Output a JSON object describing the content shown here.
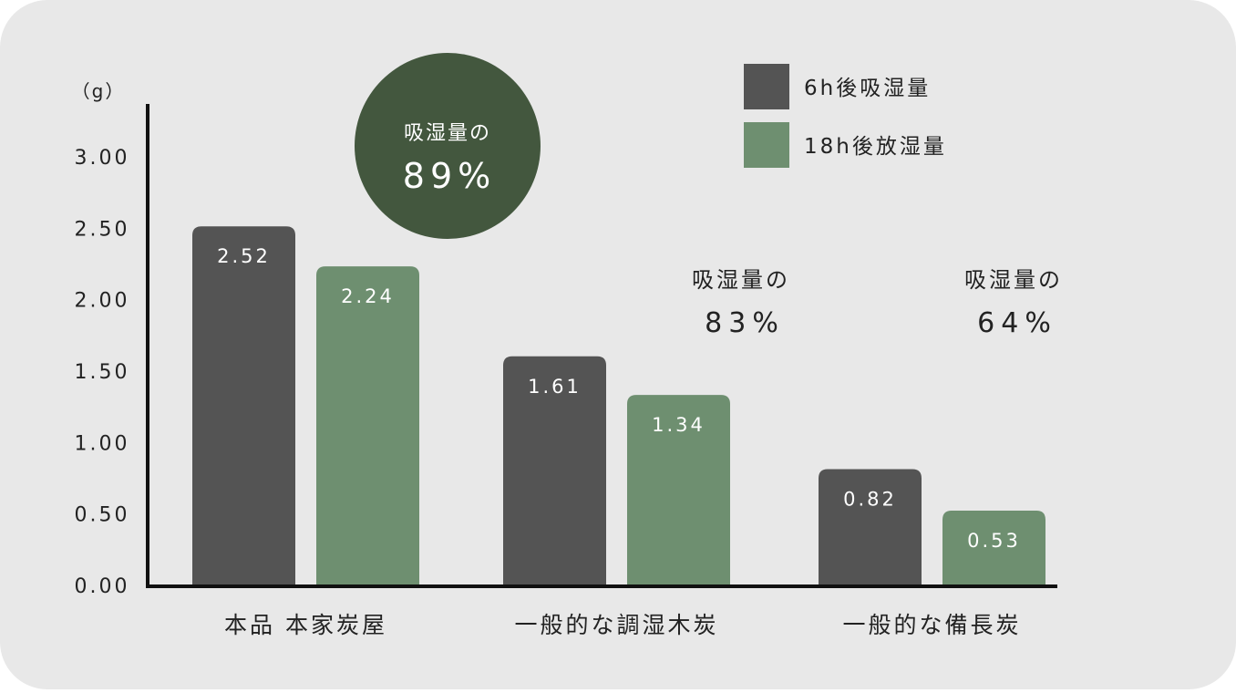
{
  "chart_data": {
    "type": "bar",
    "unit_label": "（g）",
    "categories": [
      "本品 本家炭屋",
      "一般的な調湿木炭",
      "一般的な備長炭"
    ],
    "series": [
      {
        "name": "6h後吸湿量",
        "color": "#545454",
        "values": [
          2.52,
          1.61,
          0.82
        ],
        "value_labels": [
          "2.52",
          "1.61",
          "0.82"
        ]
      },
      {
        "name": "18h後放湿量",
        "color": "#6e8f70",
        "values": [
          2.24,
          1.34,
          0.53
        ],
        "value_labels": [
          "2.24",
          "1.34",
          "0.53"
        ]
      }
    ],
    "ylim": [
      0,
      3.0
    ],
    "yticks": [
      0,
      0.5,
      1.0,
      1.5,
      2.0,
      2.5,
      3.0
    ],
    "ytick_labels": [
      "0.00",
      "0.50",
      "1.00",
      "1.50",
      "2.00",
      "2.50",
      "3.00"
    ],
    "legend_position": "top-right",
    "annotations": [
      {
        "category_index": 0,
        "caption": "吸湿量の",
        "value": "89%",
        "style": "circle",
        "color": "#43573e"
      },
      {
        "category_index": 1,
        "caption": "吸湿量の",
        "value": "83%",
        "style": "plain"
      },
      {
        "category_index": 2,
        "caption": "吸湿量の",
        "value": "64%",
        "style": "plain"
      }
    ]
  }
}
